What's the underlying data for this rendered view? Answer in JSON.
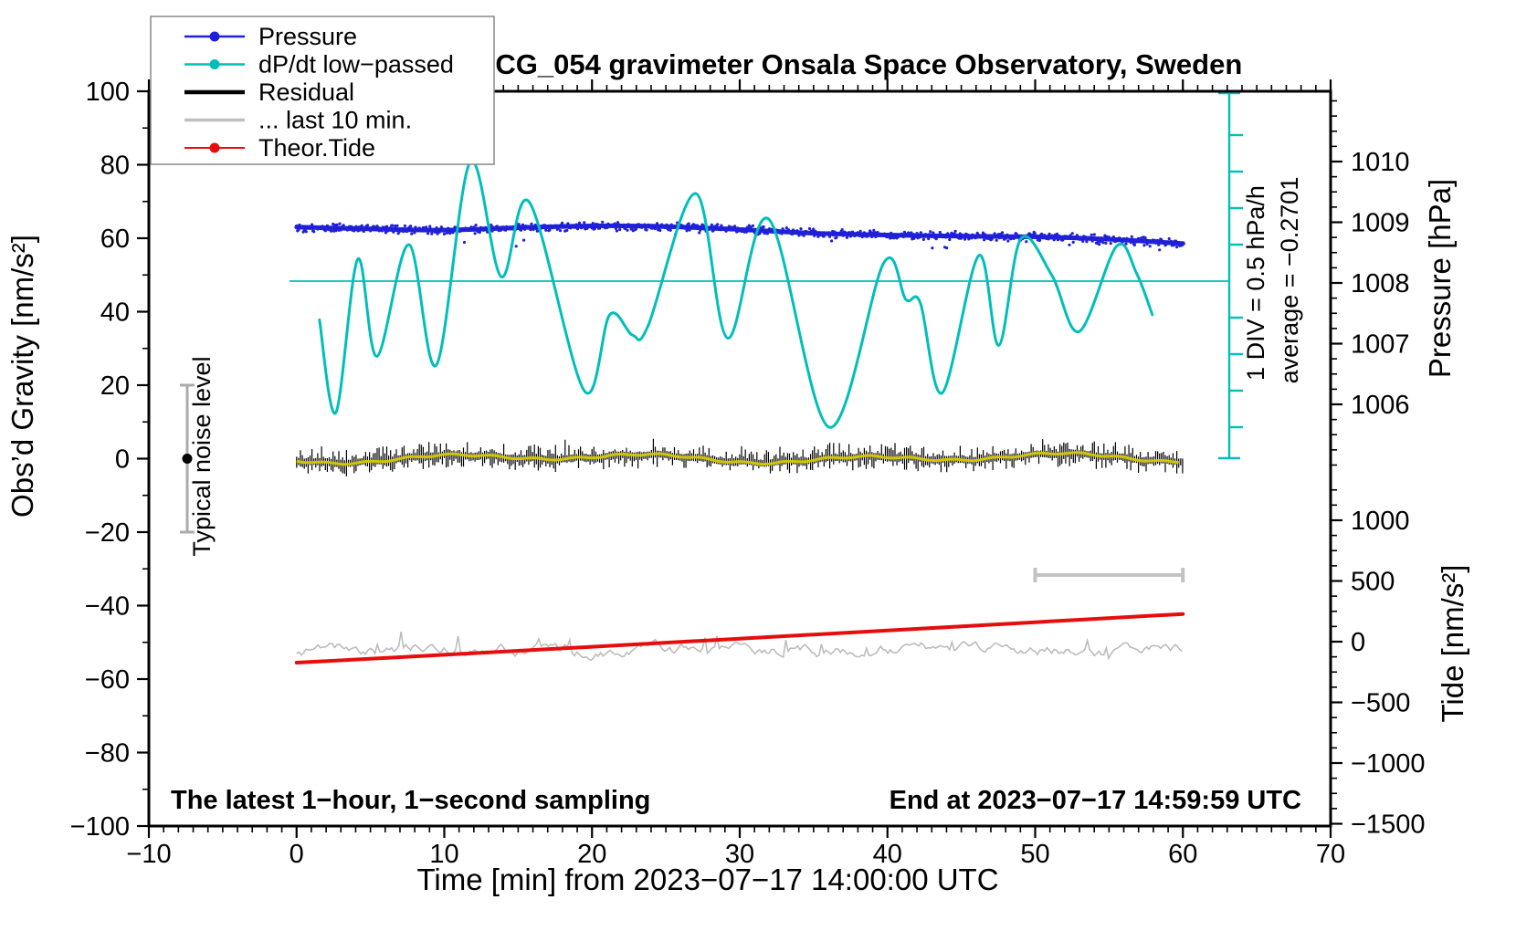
{
  "title": "SCG_054 gravimeter Onsala Space Observatory, Sweden",
  "legend": {
    "items": [
      {
        "label": "Pressure",
        "color": "#2020d8",
        "width": 2.4,
        "dot": true
      },
      {
        "label": "dP/dt low−passed",
        "color": "#00bfb8",
        "width": 2.4,
        "dot": true
      },
      {
        "label": "Residual",
        "color": "#000000",
        "width": 4.6,
        "dot": false
      },
      {
        "label": "... last 10 min.",
        "color": "#c0c0c0",
        "width": 3.6,
        "dot": false
      },
      {
        "label": "Theor.Tide",
        "color": "#e60d0d",
        "width": 2.0,
        "dot": true
      }
    ]
  },
  "axes": {
    "x": {
      "label": "Time [min] from 2023−07−17 14:00:00 UTC",
      "min": -10,
      "max": 70,
      "major": 10,
      "minor": 1
    },
    "gravity": {
      "label": "Obs’d Gravity [nm/s²]",
      "min": -100,
      "max": 100,
      "major": 20,
      "minor": 10
    },
    "pressure": {
      "label": "Pressure [hPa]",
      "tick_labels": [
        1010,
        1009,
        1008,
        1007,
        1006
      ],
      "minor_step": 0.25
    },
    "tide": {
      "label": "Tide [nm/s²]",
      "tick_labels": [
        1000,
        500,
        0,
        -500,
        -1000,
        -1500
      ],
      "minor_step": 125
    }
  },
  "annotations": {
    "div_scale": "1 DIV = 0.5 hPa/h",
    "average": "average = −0.2701",
    "noise": "Typical noise level",
    "noise_range_nm_s2": [
      -20,
      20
    ],
    "sampling": "The latest 1−hour, 1−second sampling",
    "end": "End at 2023−07−17 14:59:59 UTC"
  },
  "chart_data": {
    "type": "line",
    "title": "SCG_054 gravimeter Onsala Space Observatory, Sweden",
    "xlabel": "Time [min] from 2023−07−17 14:00:00 UTC",
    "x_range": [
      -10,
      70
    ],
    "gravity_range": [
      -100,
      100
    ],
    "grid": false,
    "legend_position": "top-left",
    "series": {
      "pressure": {
        "name": "Pressure",
        "units": "hPa",
        "color": "#2020d8",
        "style": "scatter-band",
        "noise_hpa": 0.05,
        "points": [
          [
            0,
            1008.92
          ],
          [
            5,
            1008.89
          ],
          [
            10,
            1008.87
          ],
          [
            15,
            1008.91
          ],
          [
            20,
            1008.94
          ],
          [
            25,
            1008.93
          ],
          [
            30,
            1008.88
          ],
          [
            35,
            1008.82
          ],
          [
            40,
            1008.79
          ],
          [
            45,
            1008.77
          ],
          [
            50,
            1008.76
          ],
          [
            55,
            1008.72
          ],
          [
            60,
            1008.65
          ]
        ]
      },
      "dpdt": {
        "name": "dP/dt low−passed",
        "units": "hPa/h",
        "color": "#00bfb8",
        "average": -0.2701,
        "div_value_hpa_per_h": 0.5,
        "points": [
          [
            1.55,
            -0.53
          ],
          [
            2.66,
            -1.8
          ],
          [
            4.14,
            0.3
          ],
          [
            5.44,
            -1.03
          ],
          [
            7.6,
            0.5
          ],
          [
            9.46,
            -1.15
          ],
          [
            11.75,
            1.63
          ],
          [
            13.85,
            0.06
          ],
          [
            15.76,
            1.08
          ],
          [
            19.47,
            -1.5
          ],
          [
            21.2,
            -0.46
          ],
          [
            22.75,
            -0.74
          ],
          [
            23.8,
            -0.61
          ],
          [
            27.02,
            1.2
          ],
          [
            29.18,
            -0.78
          ],
          [
            31.96,
            0.85
          ],
          [
            36.04,
            -2.0
          ],
          [
            39.75,
            0.25
          ],
          [
            41.24,
            -0.25
          ],
          [
            42.23,
            -0.3
          ],
          [
            43.71,
            -1.53
          ],
          [
            46.18,
            0.35
          ],
          [
            47.54,
            -0.88
          ],
          [
            49.03,
            0.58
          ],
          [
            51.13,
            0.08
          ],
          [
            52.98,
            -0.69
          ],
          [
            55.52,
            0.48
          ],
          [
            56.88,
            0.1
          ],
          [
            57.93,
            -0.46
          ]
        ]
      },
      "residual": {
        "name": "Residual",
        "units": "nm/s²",
        "color": "#000000",
        "mean": 0,
        "noise_peak": 4,
        "t_range": [
          0,
          60
        ],
        "lowpass_color": "#d2c600"
      },
      "residual_last10": {
        "name": "... last 10 min.",
        "units": "nm/s²",
        "color": "#bcbcbc",
        "display_offset_nm_s2": -52,
        "noise_peak": 3,
        "t_range": [
          0,
          60
        ],
        "bar_t_range": [
          50,
          60
        ]
      },
      "theor_tide": {
        "name": "Theor.Tide",
        "units": "nm/s²",
        "color": "#e60d0d",
        "points": [
          [
            0,
            -173
          ],
          [
            10,
            -108
          ],
          [
            20,
            -42
          ],
          [
            30,
            25
          ],
          [
            40,
            92
          ],
          [
            50,
            160
          ],
          [
            60,
            228
          ]
        ]
      }
    }
  }
}
